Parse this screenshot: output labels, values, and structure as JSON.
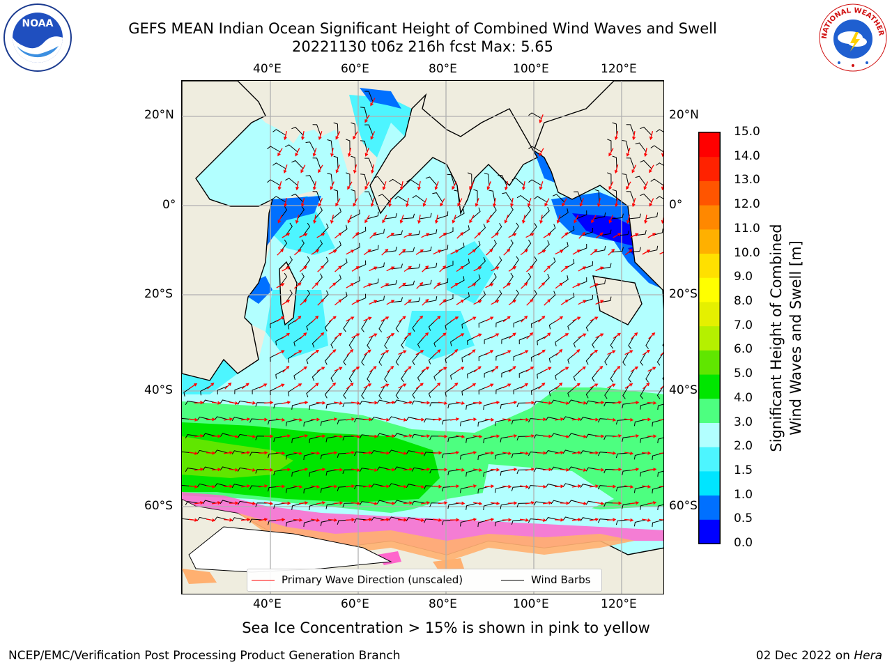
{
  "header": {
    "title_line1": "GEFS MEAN Indian Ocean Significant Height of Combined Wind Waves and Swell",
    "title_line2": "20221130 t06z 216h fcst   Max: 5.65"
  },
  "logos": {
    "left": {
      "icon": "noaa-logo",
      "text": "NOAA"
    },
    "right": {
      "icon": "nws-logo",
      "text": "NATIONAL WEATHER SERVICE"
    }
  },
  "map": {
    "lon_top": [
      "40°E",
      "60°E",
      "80°E",
      "100°E",
      "120°E"
    ],
    "lon_bottom": [
      "40°E",
      "60°E",
      "80°E",
      "100°E",
      "120°E"
    ],
    "lat_left": [
      "20°N",
      "0°",
      "20°S",
      "40°S",
      "60°S"
    ],
    "lat_right": [
      "20°N",
      "0°",
      "20°S",
      "40°S",
      "60°S"
    ],
    "land_color": "#efeddf",
    "grid_color": "#b0b0b0"
  },
  "legend": {
    "wave_label": "Primary Wave Direction (unscaled)",
    "wave_color": "#ff0000",
    "wind_label": "Wind Barbs",
    "wind_color": "#000000"
  },
  "colorbar": {
    "title_line1": "Significant Height of Combined",
    "title_line2": "Wind Waves and Swell [m]",
    "ticks": [
      "0.0",
      "0.5",
      "1.0",
      "1.5",
      "2.0",
      "3.0",
      "4.0",
      "5.0",
      "6.0",
      "7.0",
      "8.0",
      "9.0",
      "10.0",
      "11.0",
      "12.0",
      "13.0",
      "14.0",
      "15.0"
    ],
    "colors": [
      "#0000ff",
      "#0070ff",
      "#00e5ff",
      "#4df5ff",
      "#b2ffff",
      "#4dff80",
      "#00e600",
      "#60e600",
      "#b5f000",
      "#e5f000",
      "#ffff00",
      "#ffe000",
      "#ffb000",
      "#ff8800",
      "#ff5500",
      "#ff2200",
      "#ff0000"
    ]
  },
  "footer": {
    "note": "Sea Ice Concentration > 15% is shown in pink to yellow",
    "credit": "NCEP/EMC/Verification Post Processing Product Generation Branch",
    "date": "02 Dec 2022 on ",
    "host": "Hera"
  }
}
